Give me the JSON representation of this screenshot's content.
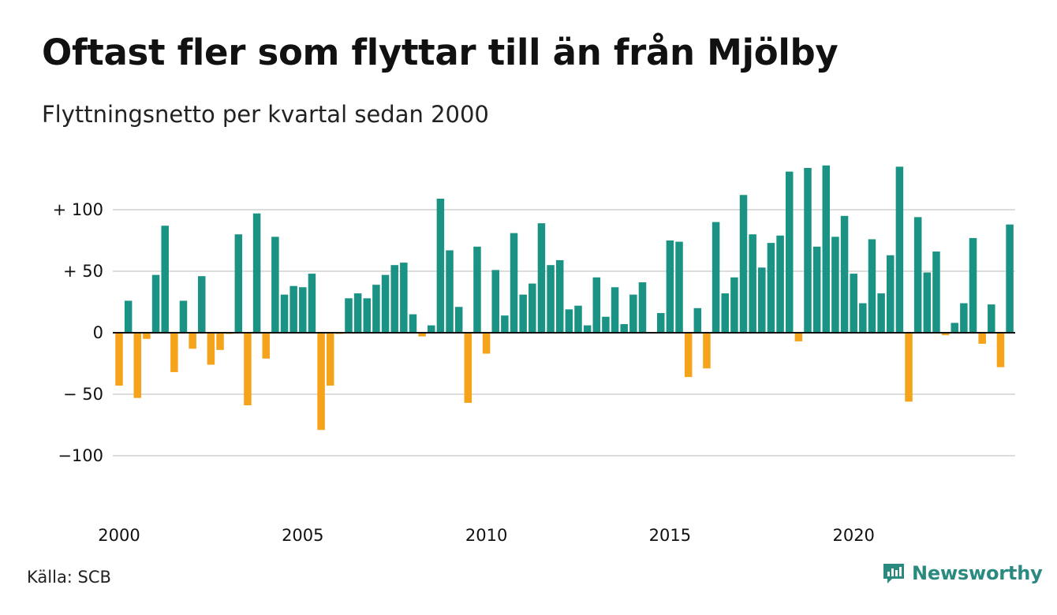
{
  "title": "Oftast fler som flyttar till än från Mjölby",
  "subtitle": "Flyttningsnetto per kvartal sedan 2000",
  "source": "Källa: SCB",
  "brand": {
    "name": "Newsworthy",
    "icon": "newsworthy-logo-icon"
  },
  "colors": {
    "positive": "#1a9384",
    "negative": "#f5a31a",
    "grid": "#dddddd",
    "zero_line": "#111111"
  },
  "chart_data": {
    "type": "bar",
    "x_start": "2000 Q1",
    "x_ticks": [
      {
        "label": "2000",
        "index": 0
      },
      {
        "label": "2005",
        "index": 20
      },
      {
        "label": "2010",
        "index": 40
      },
      {
        "label": "2015",
        "index": 60
      },
      {
        "label": "2020",
        "index": 80
      }
    ],
    "y_ticks": [
      {
        "label": "+ 100",
        "value": 100
      },
      {
        "label": "+  50",
        "value": 50
      },
      {
        "label": "0",
        "value": 0
      },
      {
        "label": "− 50",
        "value": -50
      },
      {
        "label": "−100",
        "value": -100
      }
    ],
    "ylim": [
      -140,
      140
    ],
    "grid": true,
    "values": [
      -43,
      26,
      -53,
      -5,
      47,
      87,
      -32,
      26,
      -13,
      46,
      -26,
      -14,
      -1,
      80,
      -59,
      97,
      -21,
      78,
      31,
      38,
      37,
      48,
      -79,
      -43,
      -1,
      28,
      32,
      28,
      39,
      47,
      55,
      57,
      15,
      -3,
      6,
      109,
      67,
      21,
      -57,
      70,
      -17,
      51,
      14,
      81,
      31,
      40,
      89,
      55,
      59,
      19,
      22,
      6,
      45,
      13,
      37,
      7,
      31,
      41,
      0,
      16,
      75,
      74,
      -36,
      20,
      -29,
      90,
      32,
      45,
      112,
      80,
      53,
      73,
      79,
      131,
      -7,
      134,
      70,
      136,
      78,
      95,
      48,
      24,
      76,
      32,
      63,
      135,
      -56,
      94,
      49,
      66,
      -2,
      8,
      24,
      77,
      -9,
      23,
      -28,
      88
    ]
  }
}
